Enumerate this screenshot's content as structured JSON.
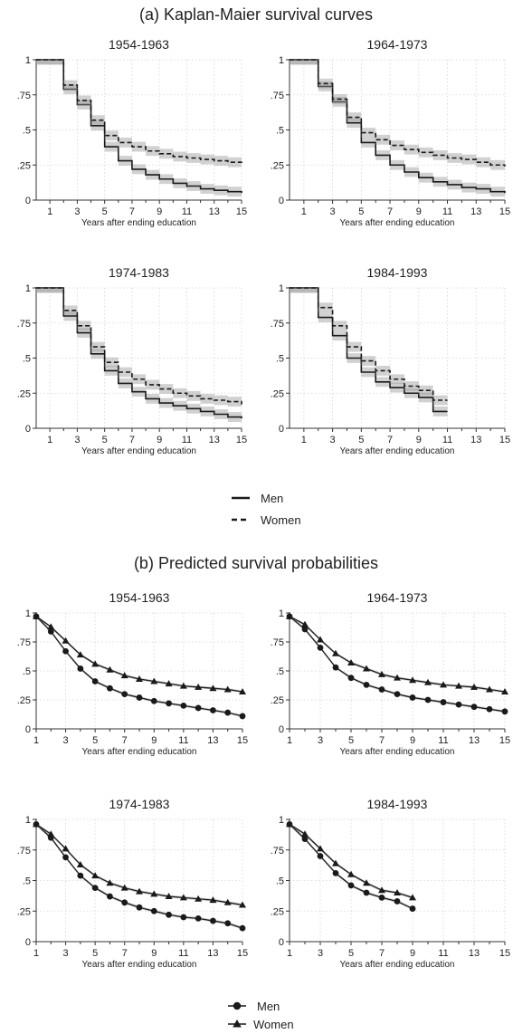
{
  "figure": {
    "section_a_title": "(a) Kaplan-Maier survival curves",
    "section_b_title": "(b) Predicted survival probabilities",
    "legend_a": [
      "Men",
      "Women"
    ],
    "legend_b": [
      "Men",
      "Women"
    ],
    "colors": {
      "line": "#1a1a1a",
      "band": "#9a9a9a",
      "grid": "#d4d4d4"
    }
  },
  "chart_data": [
    {
      "type": "line",
      "title": "1954-1963",
      "xlabel": "Years after ending education",
      "ylabel": "",
      "xlim": [
        0,
        15
      ],
      "ylim": [
        0,
        1
      ],
      "x_ticks": [
        1,
        3,
        5,
        7,
        9,
        11,
        13,
        15
      ],
      "x_minor_ticks": [
        2,
        4,
        6,
        8,
        10,
        12,
        14
      ],
      "y_ticks": [
        "0",
        ".25",
        ".5",
        ".75",
        "1"
      ],
      "grid": true,
      "step": true,
      "ci_band": true,
      "x": [
        0,
        2,
        3,
        4,
        5,
        6,
        7,
        8,
        9,
        10,
        11,
        12,
        13,
        14,
        15
      ],
      "series": [
        {
          "name": "Men",
          "line": "solid",
          "values": [
            1,
            0.79,
            0.68,
            0.53,
            0.38,
            0.28,
            0.22,
            0.18,
            0.15,
            0.12,
            0.1,
            0.08,
            0.07,
            0.06,
            0.05
          ]
        },
        {
          "name": "Women",
          "line": "dashed",
          "values": [
            1,
            0.82,
            0.71,
            0.57,
            0.46,
            0.41,
            0.38,
            0.35,
            0.33,
            0.31,
            0.3,
            0.29,
            0.28,
            0.27,
            0.26
          ]
        }
      ]
    },
    {
      "type": "line",
      "title": "1964-1973",
      "xlabel": "Years after ending education",
      "ylabel": "",
      "xlim": [
        0,
        15
      ],
      "ylim": [
        0,
        1
      ],
      "x_ticks": [
        1,
        3,
        5,
        7,
        9,
        11,
        13,
        15
      ],
      "x_minor_ticks": [
        2,
        4,
        6,
        8,
        10,
        12,
        14
      ],
      "y_ticks": [
        "0",
        ".25",
        ".5",
        ".75",
        "1"
      ],
      "grid": true,
      "step": true,
      "ci_band": true,
      "x": [
        0,
        2,
        3,
        4,
        5,
        6,
        7,
        8,
        9,
        10,
        11,
        12,
        13,
        14,
        15
      ],
      "series": [
        {
          "name": "Men",
          "line": "solid",
          "values": [
            1,
            0.81,
            0.7,
            0.55,
            0.41,
            0.32,
            0.25,
            0.2,
            0.16,
            0.13,
            0.11,
            0.09,
            0.08,
            0.06,
            0.05
          ]
        },
        {
          "name": "Women",
          "line": "dashed",
          "values": [
            1,
            0.83,
            0.72,
            0.59,
            0.48,
            0.43,
            0.39,
            0.36,
            0.34,
            0.32,
            0.3,
            0.29,
            0.27,
            0.25,
            0.24
          ]
        }
      ]
    },
    {
      "type": "line",
      "title": "1974-1983",
      "xlabel": "Years after ending education",
      "ylabel": "",
      "xlim": [
        0,
        15
      ],
      "ylim": [
        0,
        1
      ],
      "x_ticks": [
        1,
        3,
        5,
        7,
        9,
        11,
        13,
        15
      ],
      "x_minor_ticks": [
        2,
        4,
        6,
        8,
        10,
        12,
        14
      ],
      "y_ticks": [
        "0",
        ".25",
        ".5",
        ".75",
        "1"
      ],
      "grid": true,
      "step": true,
      "ci_band": true,
      "x": [
        0,
        2,
        3,
        4,
        5,
        6,
        7,
        8,
        9,
        10,
        11,
        12,
        13,
        14,
        15
      ],
      "series": [
        {
          "name": "Men",
          "line": "solid",
          "values": [
            1,
            0.8,
            0.68,
            0.53,
            0.41,
            0.32,
            0.26,
            0.21,
            0.18,
            0.16,
            0.14,
            0.12,
            0.1,
            0.08,
            0.07
          ]
        },
        {
          "name": "Women",
          "line": "dashed",
          "values": [
            1,
            0.84,
            0.73,
            0.58,
            0.47,
            0.4,
            0.35,
            0.31,
            0.28,
            0.25,
            0.23,
            0.21,
            0.2,
            0.19,
            0.17
          ]
        }
      ]
    },
    {
      "type": "line",
      "title": "1984-1993",
      "xlabel": "Years after ending education",
      "ylabel": "",
      "xlim": [
        0,
        15
      ],
      "ylim": [
        0,
        1
      ],
      "x_ticks": [
        1,
        3,
        5,
        7,
        9,
        11,
        13,
        15
      ],
      "x_minor_ticks": [
        2,
        4,
        6,
        8,
        10,
        12,
        14
      ],
      "y_ticks": [
        "0",
        ".25",
        ".5",
        ".75",
        "1"
      ],
      "grid": true,
      "step": true,
      "ci_band": true,
      "x": [
        0,
        2,
        3,
        4,
        5,
        6,
        7,
        8,
        9,
        10,
        11
      ],
      "series": [
        {
          "name": "Men",
          "line": "solid",
          "values": [
            1,
            0.79,
            0.66,
            0.5,
            0.4,
            0.33,
            0.29,
            0.25,
            0.22,
            0.12,
            0.12
          ]
        },
        {
          "name": "Women",
          "line": "dashed",
          "values": [
            1,
            0.86,
            0.73,
            0.58,
            0.48,
            0.41,
            0.35,
            0.3,
            0.27,
            0.2,
            0.2
          ]
        }
      ]
    },
    {
      "type": "line",
      "title": "1954-1963",
      "xlabel": "Years after ending education",
      "ylabel": "",
      "xlim": [
        1,
        15
      ],
      "ylim": [
        0,
        1
      ],
      "x_ticks": [
        1,
        3,
        5,
        7,
        9,
        11,
        13,
        15
      ],
      "x_minor_ticks": [
        2,
        4,
        6,
        8,
        10,
        12,
        14
      ],
      "y_ticks": [
        "0",
        ".25",
        ".5",
        ".75",
        "1"
      ],
      "grid": true,
      "markers": true,
      "ci_band": true,
      "x": [
        1,
        2,
        3,
        4,
        5,
        6,
        7,
        8,
        9,
        10,
        11,
        12,
        13,
        14,
        15
      ],
      "series": [
        {
          "name": "Men",
          "marker": "circle",
          "values": [
            0.97,
            0.84,
            0.67,
            0.52,
            0.41,
            0.35,
            0.3,
            0.27,
            0.24,
            0.22,
            0.2,
            0.18,
            0.16,
            0.14,
            0.11
          ]
        },
        {
          "name": "Women",
          "marker": "triangle",
          "values": [
            0.97,
            0.88,
            0.76,
            0.64,
            0.56,
            0.51,
            0.46,
            0.43,
            0.41,
            0.39,
            0.37,
            0.36,
            0.35,
            0.34,
            0.32
          ]
        }
      ]
    },
    {
      "type": "line",
      "title": "1964-1973",
      "xlabel": "Years after ending education",
      "ylabel": "",
      "xlim": [
        1,
        15
      ],
      "ylim": [
        0,
        1
      ],
      "x_ticks": [
        1,
        3,
        5,
        7,
        9,
        11,
        13,
        15
      ],
      "x_minor_ticks": [
        2,
        4,
        6,
        8,
        10,
        12,
        14
      ],
      "y_ticks": [
        "0",
        ".25",
        ".5",
        ".75",
        "1"
      ],
      "grid": true,
      "markers": true,
      "ci_band": true,
      "x": [
        1,
        2,
        3,
        4,
        5,
        6,
        7,
        8,
        9,
        10,
        11,
        12,
        13,
        14,
        15
      ],
      "series": [
        {
          "name": "Men",
          "marker": "circle",
          "values": [
            0.97,
            0.86,
            0.7,
            0.53,
            0.44,
            0.38,
            0.34,
            0.3,
            0.27,
            0.25,
            0.23,
            0.21,
            0.19,
            0.17,
            0.15
          ]
        },
        {
          "name": "Women",
          "marker": "triangle",
          "values": [
            0.97,
            0.9,
            0.77,
            0.65,
            0.57,
            0.52,
            0.47,
            0.44,
            0.42,
            0.4,
            0.38,
            0.37,
            0.36,
            0.34,
            0.32
          ]
        }
      ]
    },
    {
      "type": "line",
      "title": "1974-1983",
      "xlabel": "Years after ending education",
      "ylabel": "",
      "xlim": [
        1,
        15
      ],
      "ylim": [
        0,
        1
      ],
      "x_ticks": [
        1,
        3,
        5,
        7,
        9,
        11,
        13,
        15
      ],
      "x_minor_ticks": [
        2,
        4,
        6,
        8,
        10,
        12,
        14
      ],
      "y_ticks": [
        "0",
        ".25",
        ".5",
        ".75",
        "1"
      ],
      "grid": true,
      "markers": true,
      "ci_band": true,
      "x": [
        1,
        2,
        3,
        4,
        5,
        6,
        7,
        8,
        9,
        10,
        11,
        12,
        13,
        14,
        15
      ],
      "series": [
        {
          "name": "Men",
          "marker": "circle",
          "values": [
            0.96,
            0.85,
            0.69,
            0.54,
            0.44,
            0.37,
            0.32,
            0.28,
            0.25,
            0.22,
            0.2,
            0.19,
            0.17,
            0.15,
            0.11
          ]
        },
        {
          "name": "Women",
          "marker": "triangle",
          "values": [
            0.96,
            0.88,
            0.76,
            0.63,
            0.54,
            0.48,
            0.44,
            0.41,
            0.39,
            0.37,
            0.36,
            0.35,
            0.34,
            0.32,
            0.3
          ]
        }
      ]
    },
    {
      "type": "line",
      "title": "1984-1993",
      "xlabel": "Years after ending education",
      "ylabel": "",
      "xlim": [
        1,
        15
      ],
      "ylim": [
        0,
        1
      ],
      "x_ticks": [
        1,
        3,
        5,
        7,
        9,
        11,
        13,
        15
      ],
      "x_minor_ticks": [
        2,
        4,
        6,
        8,
        10,
        12,
        14
      ],
      "y_ticks": [
        "0",
        ".25",
        ".5",
        ".75",
        "1"
      ],
      "grid": true,
      "markers": true,
      "ci_band": true,
      "x": [
        1,
        2,
        3,
        4,
        5,
        6,
        7,
        8,
        9
      ],
      "series": [
        {
          "name": "Men",
          "marker": "circle",
          "values": [
            0.96,
            0.84,
            0.7,
            0.56,
            0.46,
            0.4,
            0.36,
            0.33,
            0.27
          ]
        },
        {
          "name": "Women",
          "marker": "triangle",
          "values": [
            0.96,
            0.88,
            0.76,
            0.64,
            0.55,
            0.48,
            0.42,
            0.4,
            0.36
          ]
        }
      ]
    }
  ]
}
